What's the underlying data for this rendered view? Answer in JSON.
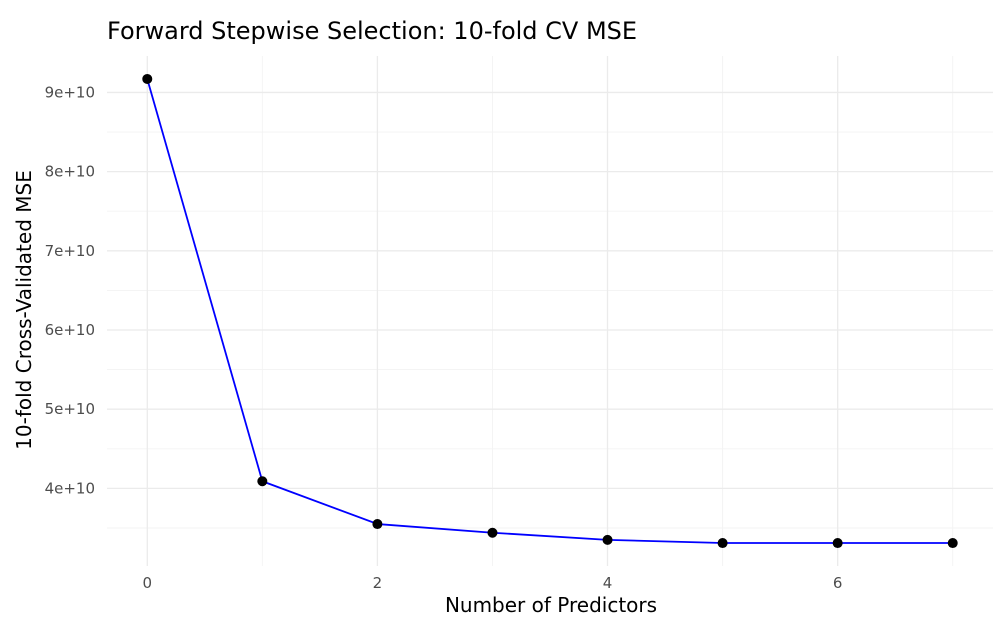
{
  "chart_data": {
    "type": "line",
    "title": "Forward Stepwise Selection: 10-fold CV MSE",
    "xlabel": "Number of Predictors",
    "ylabel": "10-fold Cross-Validated MSE",
    "x": [
      0,
      1,
      2,
      3,
      4,
      5,
      6,
      7
    ],
    "series": [
      {
        "name": "CV MSE",
        "values": [
          91700000000,
          40900000000,
          35500000000,
          34400000000,
          33500000000,
          33100000000,
          33100000000,
          33100000000
        ],
        "line_color": "#0000ff",
        "marker_color": "#000000"
      }
    ],
    "xlim": [
      -0.35,
      7.35
    ],
    "ylim": [
      30200000000,
      94600000000
    ],
    "x_ticks": [
      0,
      2,
      4,
      6
    ],
    "x_tick_labels": [
      "0",
      "2",
      "4",
      "6"
    ],
    "x_minor_ticks": [
      1,
      3,
      5,
      7
    ],
    "y_ticks": [
      40000000000,
      50000000000,
      60000000000,
      70000000000,
      80000000000,
      90000000000
    ],
    "y_tick_labels": [
      "4e+10",
      "5e+10",
      "6e+10",
      "7e+10",
      "8e+10",
      "9e+10"
    ],
    "y_minor_ticks": [
      35000000000,
      45000000000,
      55000000000,
      65000000000,
      75000000000,
      85000000000
    ],
    "grid": true,
    "legend": "none"
  }
}
